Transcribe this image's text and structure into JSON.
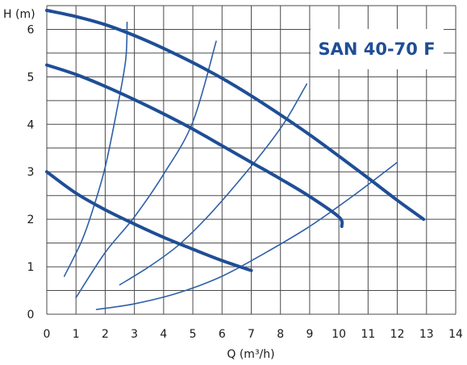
{
  "chart_data": {
    "type": "line",
    "title": "SAN 40-70 F",
    "xlabel": "Q (m³/h)",
    "ylabel": "H (m)",
    "xlim": [
      0,
      14
    ],
    "ylim": [
      0,
      6.5
    ],
    "xticks": [
      0,
      1,
      2,
      3,
      4,
      5,
      6,
      7,
      8,
      9,
      10,
      11,
      12,
      13,
      14
    ],
    "yticks": [
      0,
      1,
      2,
      3,
      4,
      5,
      6
    ],
    "grid": true,
    "xgrid_step": 1,
    "ygrid_step": 0.5,
    "colors": {
      "thick": "#1f4e96",
      "thin": "#2f5fa8",
      "grid": "#4a4a4a",
      "title": "#1f4e96"
    },
    "pump_curves": [
      {
        "points": [
          [
            0,
            6.4
          ],
          [
            1,
            6.27
          ],
          [
            2,
            6.1
          ],
          [
            3,
            5.87
          ],
          [
            4,
            5.6
          ],
          [
            5,
            5.3
          ],
          [
            6,
            4.97
          ],
          [
            7,
            4.6
          ],
          [
            8,
            4.2
          ],
          [
            9,
            3.78
          ],
          [
            10,
            3.33
          ],
          [
            11,
            2.87
          ],
          [
            12,
            2.4
          ],
          [
            12.9,
            2.0
          ]
        ]
      },
      {
        "points": [
          [
            0,
            5.25
          ],
          [
            1,
            5.05
          ],
          [
            2,
            4.8
          ],
          [
            3,
            4.52
          ],
          [
            4,
            4.22
          ],
          [
            5,
            3.9
          ],
          [
            6,
            3.55
          ],
          [
            7,
            3.2
          ],
          [
            8,
            2.85
          ],
          [
            9,
            2.48
          ],
          [
            10,
            2.05
          ],
          [
            10.1,
            1.85
          ]
        ]
      },
      {
        "points": [
          [
            0,
            3.0
          ],
          [
            1,
            2.55
          ],
          [
            2,
            2.2
          ],
          [
            3,
            1.9
          ],
          [
            4,
            1.62
          ],
          [
            5,
            1.37
          ],
          [
            6,
            1.13
          ],
          [
            7,
            0.92
          ]
        ]
      }
    ],
    "system_curves": [
      {
        "points": [
          [
            0.6,
            0.8
          ],
          [
            1.2,
            1.55
          ],
          [
            1.6,
            2.25
          ],
          [
            2.0,
            3.1
          ],
          [
            2.4,
            4.3
          ],
          [
            2.7,
            5.35
          ],
          [
            2.75,
            6.15
          ]
        ]
      },
      {
        "points": [
          [
            1.0,
            0.35
          ],
          [
            2.0,
            1.3
          ],
          [
            3.0,
            2.05
          ],
          [
            4.0,
            2.95
          ],
          [
            5.0,
            4.05
          ],
          [
            5.8,
            5.75
          ]
        ]
      },
      {
        "points": [
          [
            2.5,
            0.62
          ],
          [
            3.5,
            1.0
          ],
          [
            4.5,
            1.45
          ],
          [
            5.5,
            2.05
          ],
          [
            6.5,
            2.75
          ],
          [
            7.5,
            3.5
          ],
          [
            8.2,
            4.1
          ],
          [
            8.9,
            4.85
          ]
        ]
      },
      {
        "points": [
          [
            1.7,
            0.1
          ],
          [
            3.0,
            0.22
          ],
          [
            4.5,
            0.45
          ],
          [
            6.0,
            0.8
          ],
          [
            7.5,
            1.3
          ],
          [
            9.0,
            1.85
          ],
          [
            10.5,
            2.5
          ],
          [
            12.0,
            3.2
          ]
        ]
      }
    ]
  }
}
